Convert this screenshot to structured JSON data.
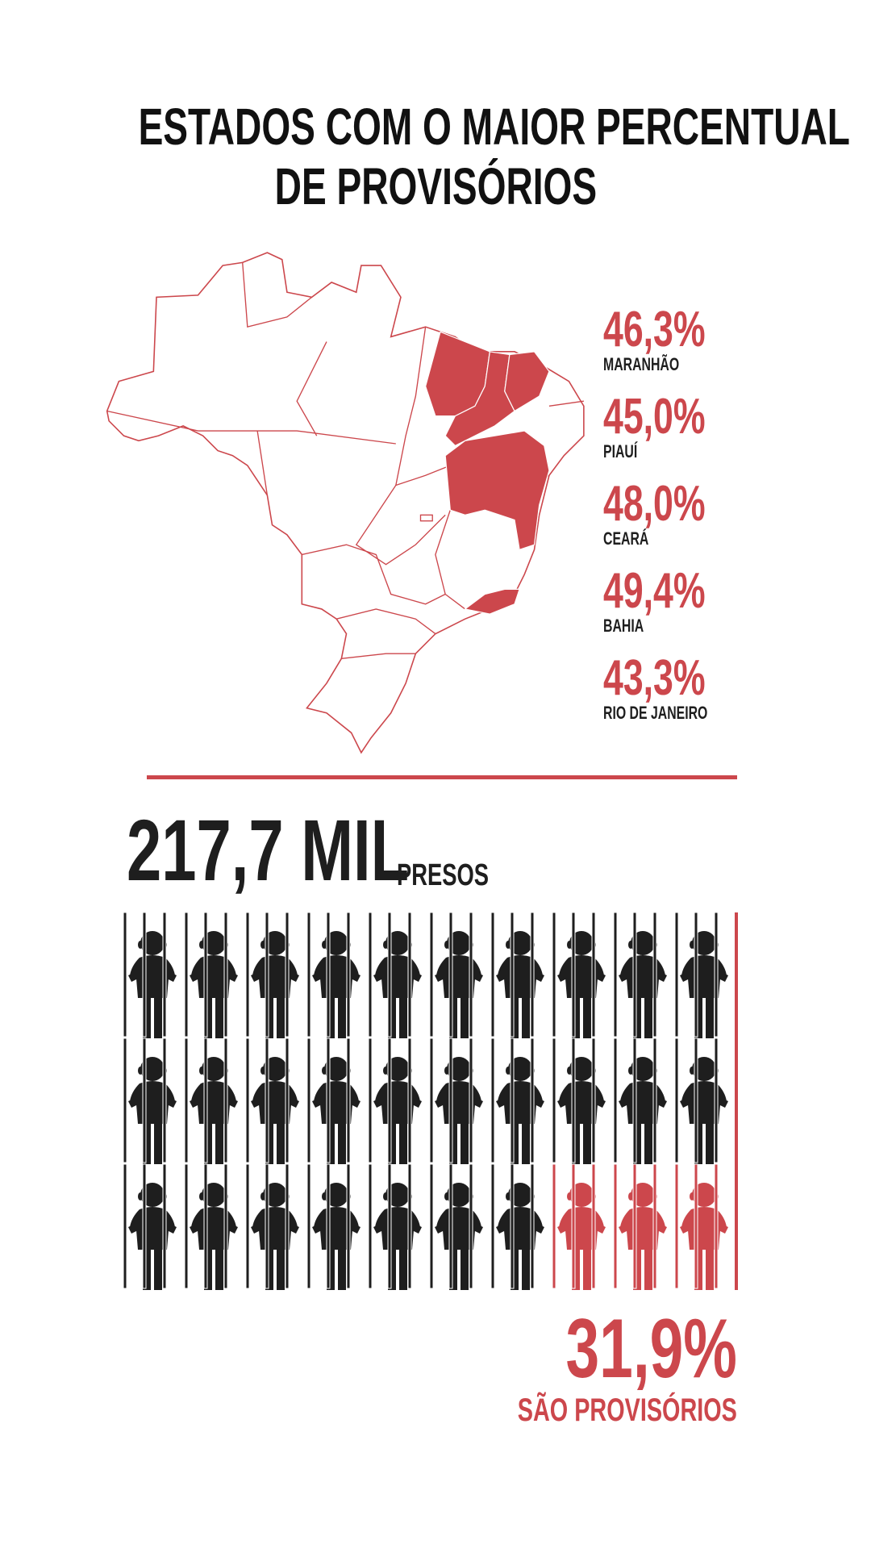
{
  "title": {
    "line1": "ESTADOS COM O MAIOR PERCENTUAL",
    "line2": "DE PROVISÓRIOS"
  },
  "colors": {
    "accent": "#cc474c",
    "dark": "#1e1e1e"
  },
  "states": [
    {
      "percent": "46,3%",
      "name": "MARANHÃO"
    },
    {
      "percent": "45,0%",
      "name": "PIAUÍ"
    },
    {
      "percent": "48,0%",
      "name": "CEARÁ"
    },
    {
      "percent": "49,4%",
      "name": "BAHIA"
    },
    {
      "percent": "43,3%",
      "name": "RIO DE JANEIRO"
    }
  ],
  "total": {
    "value": "217,7 MIL",
    "unit": "PRESOS"
  },
  "pictogram": {
    "icon": "prisoner-behind-bars-icon",
    "total_icons": 30,
    "highlighted_icons": 3
  },
  "result": {
    "percent": "31,9%",
    "label": "SÃO PROVISÓRIOS"
  }
}
